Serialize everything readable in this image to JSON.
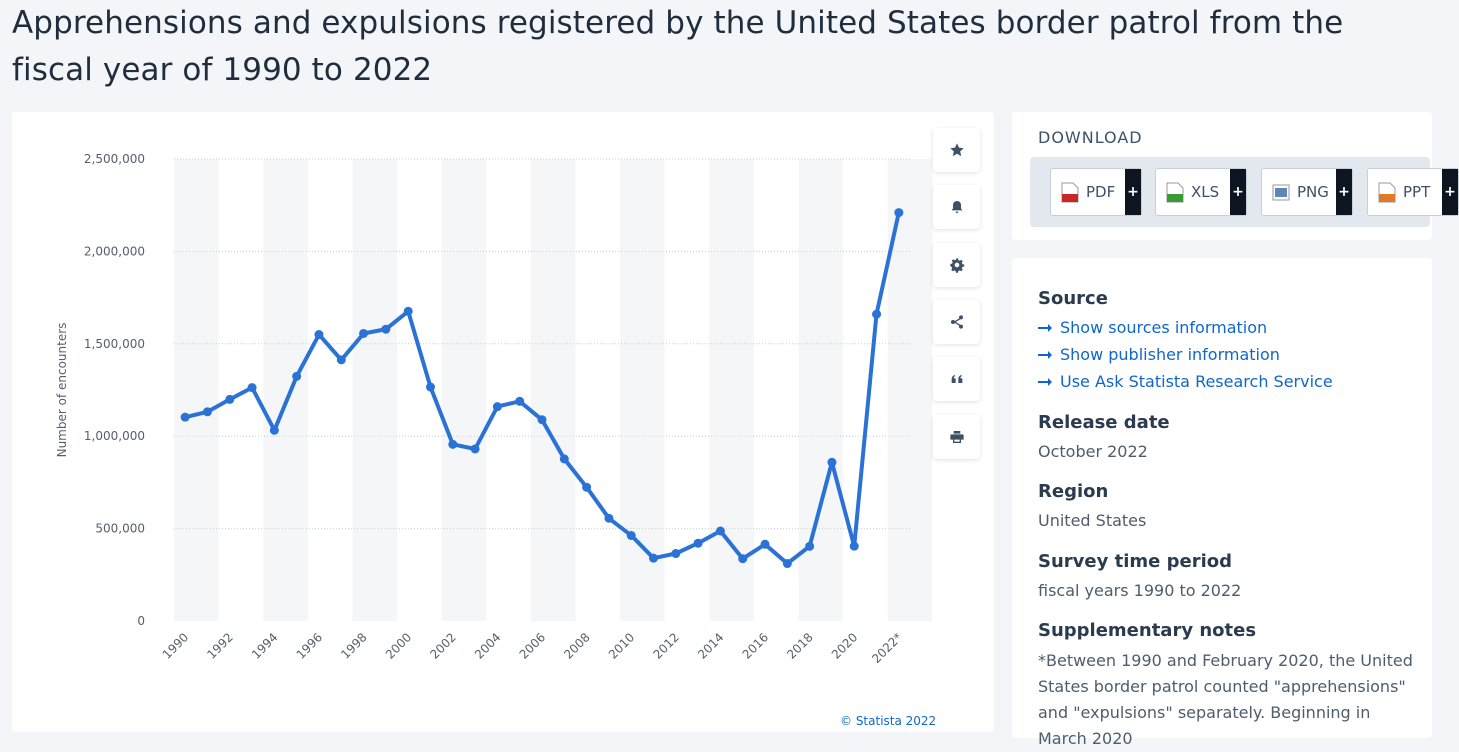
{
  "page": {
    "title": "Apprehensions and expulsions registered by the United States border patrol from the fiscal year of 1990 to 2022"
  },
  "chart_data": {
    "type": "line",
    "ylabel": "Number of encounters",
    "xlabel": "",
    "ylim": [
      0,
      2500000
    ],
    "yticks": [
      0,
      500000,
      1000000,
      1500000,
      2000000,
      2500000
    ],
    "ytick_labels": [
      "0",
      "500,000",
      "1,000,000",
      "1,500,000",
      "2,000,000",
      "2,500,000"
    ],
    "x": [
      "1990",
      "1991",
      "1992",
      "1993",
      "1994",
      "1995",
      "1996",
      "1997",
      "1998",
      "1999",
      "2000",
      "2001",
      "2002",
      "2003",
      "2004",
      "2005",
      "2006",
      "2007",
      "2008",
      "2009",
      "2010",
      "2011",
      "2012",
      "2013",
      "2014",
      "2015",
      "2016",
      "2017",
      "2018",
      "2019",
      "2020",
      "2021",
      "2022*"
    ],
    "xtick_labels": [
      "1990",
      "1992",
      "1994",
      "1996",
      "1998",
      "2000",
      "2002",
      "2004",
      "2006",
      "2008",
      "2010",
      "2012",
      "2014",
      "2016",
      "2018",
      "2020",
      "2022*"
    ],
    "series": [
      {
        "values": [
          1103000,
          1132000,
          1199000,
          1263000,
          1032000,
          1324000,
          1550000,
          1413000,
          1556000,
          1579000,
          1676000,
          1266000,
          956000,
          931000,
          1160000,
          1189000,
          1089000,
          877000,
          724000,
          556000,
          463000,
          340000,
          365000,
          421000,
          487000,
          337000,
          415000,
          311000,
          404000,
          859000,
          405000,
          1660000,
          2210000
        ],
        "color": "#2a72d6"
      }
    ],
    "grid": true,
    "alternating_bands": true,
    "credit": "© Statista 2022"
  },
  "toolbar": {
    "buttons": [
      {
        "name": "favorite-button",
        "icon": "star-icon"
      },
      {
        "name": "notification-button",
        "icon": "bell-icon"
      },
      {
        "name": "settings-button",
        "icon": "gear-icon"
      },
      {
        "name": "share-button",
        "icon": "share-icon"
      },
      {
        "name": "cite-button",
        "icon": "quote-icon"
      },
      {
        "name": "print-button",
        "icon": "printer-icon"
      }
    ]
  },
  "download": {
    "title": "DOWNLOAD",
    "buttons": [
      {
        "label": "PDF",
        "plus": "+",
        "icon_color": "#c62828"
      },
      {
        "label": "XLS",
        "plus": "+",
        "icon_color": "#3a9a35"
      },
      {
        "label": "PNG",
        "plus": "+",
        "icon_color": "#5d87b8"
      },
      {
        "label": "PPT",
        "plus": "+",
        "icon_color": "#e07a2a"
      }
    ]
  },
  "info": {
    "source_heading": "Source",
    "source_links": [
      "Show sources information",
      "Show publisher information",
      "Use Ask Statista Research Service"
    ],
    "release_heading": "Release date",
    "release_value": "October 2022",
    "region_heading": "Region",
    "region_value": "United States",
    "survey_heading": "Survey time period",
    "survey_value": "fiscal years 1990 to 2022",
    "notes_heading": "Supplementary notes",
    "notes_text": "*Between 1990 and February 2020, the United States border patrol counted \"apprehensions\" and \"expulsions\" separately. Beginning in March 2020"
  },
  "colors": {
    "accent": "#2a72d6",
    "link": "#1166cc",
    "band": "#f4f6f8"
  }
}
